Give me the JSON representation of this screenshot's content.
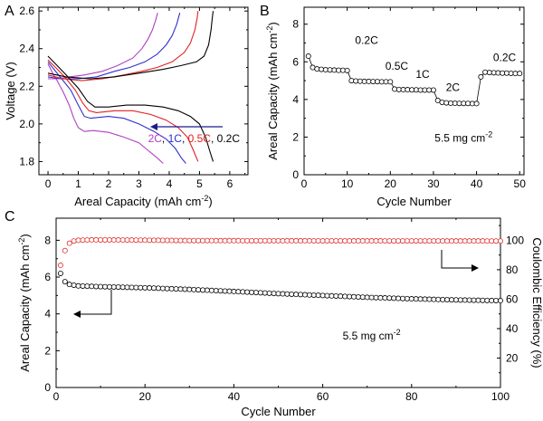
{
  "panels": {
    "a": "A",
    "b": "B",
    "c": "C"
  },
  "chart_data": [
    {
      "id": "a",
      "type": "line",
      "xlabel": "Areal Capacity (mAh cm",
      "xlabel_sup": "-2",
      "xlabel_end": ")",
      "ylabel": "Voltage (V)",
      "xlim": [
        -0.3,
        6.6
      ],
      "ylim": [
        1.73,
        2.62
      ],
      "xticks": [
        "0",
        "1",
        "2",
        "3",
        "4",
        "5",
        "6"
      ],
      "yticks": [
        "1.8",
        "2.0",
        "2.2",
        "2.4",
        "2.6"
      ],
      "legend": [
        "2C",
        "1C",
        "0.5C",
        "0.2C"
      ],
      "series": [
        {
          "name": "2C",
          "color": "#b040c0",
          "discharge": [
            [
              0,
              2.32
            ],
            [
              0.15,
              2.27
            ],
            [
              0.3,
              2.23
            ],
            [
              0.5,
              2.17
            ],
            [
              0.7,
              2.1
            ],
            [
              0.85,
              2.03
            ],
            [
              1.0,
              1.98
            ],
            [
              1.2,
              1.96
            ],
            [
              1.5,
              1.965
            ],
            [
              2.0,
              1.955
            ],
            [
              2.5,
              1.93
            ],
            [
              3.0,
              1.9
            ],
            [
              3.3,
              1.86
            ],
            [
              3.6,
              1.82
            ],
            [
              3.8,
              1.79
            ]
          ],
          "charge": [
            [
              0,
              2.24
            ],
            [
              0.3,
              2.24
            ],
            [
              0.7,
              2.25
            ],
            [
              1.2,
              2.26
            ],
            [
              1.8,
              2.28
            ],
            [
              2.3,
              2.31
            ],
            [
              2.8,
              2.35
            ],
            [
              3.1,
              2.4
            ],
            [
              3.3,
              2.45
            ],
            [
              3.45,
              2.5
            ],
            [
              3.55,
              2.55
            ],
            [
              3.62,
              2.59
            ]
          ]
        },
        {
          "name": "1C",
          "color": "#3030d0",
          "discharge": [
            [
              0,
              2.33
            ],
            [
              0.2,
              2.29
            ],
            [
              0.45,
              2.24
            ],
            [
              0.75,
              2.18
            ],
            [
              1.0,
              2.1
            ],
            [
              1.2,
              2.04
            ],
            [
              1.4,
              2.03
            ],
            [
              2.0,
              2.04
            ],
            [
              2.5,
              2.03
            ],
            [
              3.0,
              2.0
            ],
            [
              3.5,
              1.96
            ],
            [
              3.9,
              1.92
            ],
            [
              4.2,
              1.87
            ],
            [
              4.4,
              1.82
            ],
            [
              4.55,
              1.79
            ]
          ],
          "charge": [
            [
              0,
              2.25
            ],
            [
              0.4,
              2.24
            ],
            [
              1.0,
              2.24
            ],
            [
              1.6,
              2.25
            ],
            [
              2.2,
              2.28
            ],
            [
              2.7,
              2.3
            ],
            [
              3.2,
              2.33
            ],
            [
              3.6,
              2.37
            ],
            [
              3.9,
              2.42
            ],
            [
              4.1,
              2.47
            ],
            [
              4.25,
              2.53
            ],
            [
              4.35,
              2.59
            ]
          ]
        },
        {
          "name": "0.5C",
          "color": "#e02020",
          "discharge": [
            [
              0,
              2.34
            ],
            [
              0.25,
              2.3
            ],
            [
              0.55,
              2.25
            ],
            [
              0.9,
              2.18
            ],
            [
              1.15,
              2.11
            ],
            [
              1.35,
              2.07
            ],
            [
              1.6,
              2.06
            ],
            [
              2.2,
              2.07
            ],
            [
              2.8,
              2.07
            ],
            [
              3.4,
              2.05
            ],
            [
              3.9,
              2.02
            ],
            [
              4.3,
              1.98
            ],
            [
              4.6,
              1.93
            ],
            [
              4.8,
              1.86
            ],
            [
              4.95,
              1.8
            ]
          ],
          "charge": [
            [
              0,
              2.26
            ],
            [
              0.5,
              2.24
            ],
            [
              1.1,
              2.23
            ],
            [
              1.8,
              2.24
            ],
            [
              2.5,
              2.26
            ],
            [
              3.1,
              2.28
            ],
            [
              3.6,
              2.3
            ],
            [
              4.1,
              2.33
            ],
            [
              4.5,
              2.38
            ],
            [
              4.7,
              2.43
            ],
            [
              4.85,
              2.5
            ],
            [
              4.92,
              2.56
            ],
            [
              4.95,
              2.6
            ]
          ]
        },
        {
          "name": "0.2C",
          "color": "#000000",
          "discharge": [
            [
              0,
              2.36
            ],
            [
              0.3,
              2.31
            ],
            [
              0.6,
              2.26
            ],
            [
              1.0,
              2.19
            ],
            [
              1.3,
              2.12
            ],
            [
              1.55,
              2.09
            ],
            [
              2.0,
              2.09
            ],
            [
              2.6,
              2.1
            ],
            [
              3.2,
              2.1
            ],
            [
              3.8,
              2.09
            ],
            [
              4.3,
              2.07
            ],
            [
              4.7,
              2.04
            ],
            [
              5.0,
              2.0
            ],
            [
              5.2,
              1.93
            ],
            [
              5.35,
              1.85
            ],
            [
              5.45,
              1.8
            ]
          ],
          "charge": [
            [
              0,
              2.27
            ],
            [
              0.6,
              2.25
            ],
            [
              1.4,
              2.24
            ],
            [
              2.2,
              2.25
            ],
            [
              3.0,
              2.27
            ],
            [
              3.8,
              2.29
            ],
            [
              4.4,
              2.31
            ],
            [
              4.9,
              2.33
            ],
            [
              5.15,
              2.36
            ],
            [
              5.3,
              2.42
            ],
            [
              5.38,
              2.5
            ],
            [
              5.42,
              2.56
            ],
            [
              5.45,
              2.6
            ]
          ]
        }
      ]
    },
    {
      "id": "b",
      "type": "scatter",
      "xlabel": "Cycle Number",
      "ylabel": "Areal Capacity (mAh cm",
      "ylabel_sup": "-2",
      "ylabel_end": ")",
      "xlim": [
        0,
        51
      ],
      "ylim": [
        0,
        8.9
      ],
      "xticks": [
        "0",
        "10",
        "20",
        "30",
        "40",
        "50"
      ],
      "yticks": [
        "0",
        "2",
        "4",
        "6",
        "8"
      ],
      "annotation": "5.5 mg cm",
      "annotation_sup": "-2",
      "rate_labels": [
        "0.2C",
        "0.5C",
        "1C",
        "2C",
        "0.2C"
      ],
      "x": [
        1,
        2,
        3,
        4,
        5,
        6,
        7,
        8,
        9,
        10,
        11,
        12,
        13,
        14,
        15,
        16,
        17,
        18,
        19,
        20,
        21,
        22,
        23,
        24,
        25,
        26,
        27,
        28,
        29,
        30,
        31,
        32,
        33,
        34,
        35,
        36,
        37,
        38,
        39,
        40,
        41,
        42,
        43,
        44,
        45,
        46,
        47,
        48,
        49,
        50
      ],
      "values": [
        6.3,
        5.7,
        5.62,
        5.6,
        5.58,
        5.57,
        5.56,
        5.55,
        5.55,
        5.54,
        5.0,
        4.98,
        4.97,
        4.96,
        4.96,
        4.95,
        4.95,
        4.94,
        4.94,
        4.94,
        4.55,
        4.53,
        4.52,
        4.52,
        4.51,
        4.51,
        4.5,
        4.5,
        4.5,
        4.5,
        3.95,
        3.85,
        3.82,
        3.8,
        3.8,
        3.79,
        3.79,
        3.79,
        3.78,
        3.78,
        5.2,
        5.45,
        5.43,
        5.42,
        5.41,
        5.4,
        5.4,
        5.39,
        5.38,
        5.38
      ]
    },
    {
      "id": "c",
      "type": "scatter",
      "xlabel": "Cycle Number",
      "ylabel": "Areal Capacity (mAh cm",
      "ylabel_sup": "-2",
      "ylabel_end": ")",
      "ylabel_right": "Coulombic Efficiency (%)",
      "xlim": [
        0,
        100
      ],
      "ylim": [
        0,
        9.2
      ],
      "ylim_right": [
        0,
        115
      ],
      "xticks": [
        "0",
        "20",
        "40",
        "60",
        "80",
        "100"
      ],
      "yticks": [
        "0",
        "2",
        "4",
        "6",
        "8"
      ],
      "yticks_right": [
        "20",
        "40",
        "60",
        "80",
        "100"
      ],
      "annotation": "5.5 mg cm",
      "annotation_sup": "-2",
      "series": [
        {
          "name": "Areal Capacity",
          "axis": "left",
          "color": "#000000",
          "points": [
            [
              1,
              6.2
            ],
            [
              2,
              5.75
            ],
            [
              3,
              5.6
            ],
            [
              5,
              5.52
            ],
            [
              10,
              5.48
            ],
            [
              20,
              5.42
            ],
            [
              30,
              5.33
            ],
            [
              40,
              5.22
            ],
            [
              50,
              5.1
            ],
            [
              60,
              5.0
            ],
            [
              70,
              4.9
            ],
            [
              80,
              4.82
            ],
            [
              90,
              4.76
            ],
            [
              100,
              4.72
            ]
          ]
        },
        {
          "name": "Coulombic Efficiency",
          "axis": "right",
          "color": "#e03030",
          "points": [
            [
              1,
              83
            ],
            [
              2,
              93
            ],
            [
              3,
              98
            ],
            [
              4,
              99.5
            ],
            [
              5,
              100
            ],
            [
              8,
              100.3
            ],
            [
              15,
              100.2
            ],
            [
              30,
              99.8
            ],
            [
              50,
              99.7
            ],
            [
              70,
              99.6
            ],
            [
              100,
              99.5
            ]
          ]
        }
      ]
    }
  ]
}
